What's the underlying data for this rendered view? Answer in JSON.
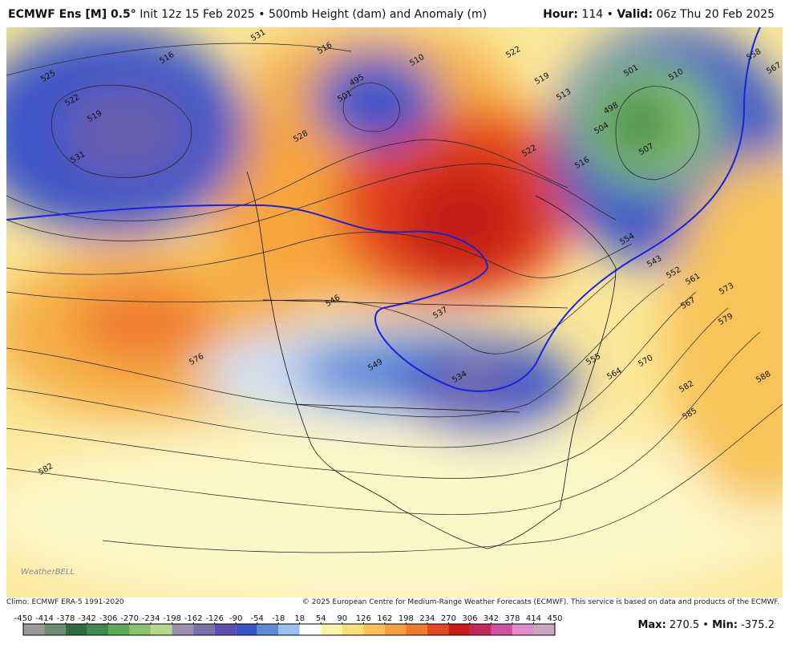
{
  "header": {
    "model": "ECMWF Ens [M] 0.5°",
    "info": "Init 12z 15 Feb 2025 • 500mb Height (dam) and Anomaly (m)",
    "hour_label": "Hour:",
    "hour": 114,
    "separator": "•",
    "valid_label": "Valid:",
    "valid": "06z Thu 20 Feb 2025"
  },
  "map": {
    "logo": "WeatherBELL",
    "contour_labels": [
      531,
      516,
      525,
      522,
      519,
      531,
      516,
      495,
      501,
      510,
      522,
      519,
      513,
      501,
      498,
      504,
      507,
      510,
      516,
      522,
      528,
      558,
      567,
      554,
      543,
      552,
      561,
      567,
      573,
      579,
      570,
      564,
      555,
      582,
      585,
      588,
      576,
      582,
      546,
      537,
      534,
      549
    ]
  },
  "footer": {
    "climo": "Climo: ECMWF ERA-5 1991-2020",
    "copyright": "© 2025 European Centre for Medium-Range Weather Forecasts (ECMWF). This service is based on data and products of the ECMWF.",
    "max_label": "Max:",
    "max": 270.5,
    "min_label": "Min:",
    "min": -375.2
  },
  "colorbar": {
    "ticks": [
      -450,
      -414,
      -378,
      -342,
      -306,
      -270,
      -234,
      -198,
      -162,
      -126,
      -90,
      -54,
      -18,
      18,
      54,
      90,
      126,
      162,
      198,
      234,
      270,
      306,
      342,
      378,
      414,
      450
    ],
    "colors": [
      "#9a9a9a",
      "#6e8a74",
      "#2f6b3e",
      "#3f8a4a",
      "#5fa85b",
      "#8cc46e",
      "#b5d88c",
      "#9a8fb0",
      "#7b6fa8",
      "#5a4fb0",
      "#3a55c8",
      "#5f8ad8",
      "#9cc0ec",
      "#ffffff",
      "#fdf2a8",
      "#fbe07a",
      "#f8c45a",
      "#f4a040",
      "#ee7a2e",
      "#e04a1e",
      "#c81e18",
      "#c02a5a",
      "#d050a0",
      "#e08cc8",
      "#c8a8c0"
    ]
  }
}
